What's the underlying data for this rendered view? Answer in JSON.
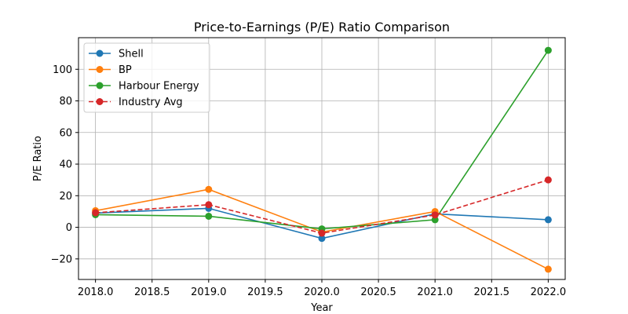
{
  "chart_data": {
    "type": "line",
    "title": "Price-to-Earnings (P/E) Ratio Comparison",
    "xlabel": "Year",
    "ylabel": "P/E Ratio",
    "xlim": [
      2017.85,
      2022.15
    ],
    "ylim": [
      -33,
      120
    ],
    "x_ticks": [
      2018.0,
      2018.5,
      2019.0,
      2019.5,
      2020.0,
      2020.5,
      2021.0,
      2021.5,
      2022.0
    ],
    "x_tick_labels": [
      "2018.0",
      "2018.5",
      "2019.0",
      "2019.5",
      "2020.0",
      "2020.5",
      "2021.0",
      "2021.5",
      "2022.0"
    ],
    "y_ticks": [
      -20,
      0,
      20,
      40,
      60,
      80,
      100
    ],
    "y_tick_labels": [
      "−20",
      "0",
      "20",
      "40",
      "60",
      "80",
      "100"
    ],
    "grid": true,
    "legend_position": "top-left",
    "x": [
      2018,
      2019,
      2020,
      2021,
      2022
    ],
    "series": [
      {
        "name": "Shell",
        "color": "#1f77b4",
        "linestyle": "solid",
        "marker": "circle",
        "values": [
          9,
          12,
          -7,
          8.5,
          4.8
        ]
      },
      {
        "name": "BP",
        "color": "#ff7f0e",
        "linestyle": "solid",
        "marker": "circle",
        "values": [
          10.5,
          24,
          -3,
          10,
          -26.5
        ]
      },
      {
        "name": "Harbour Energy",
        "color": "#2ca02c",
        "linestyle": "solid",
        "marker": "circle",
        "values": [
          8,
          7,
          -1,
          4.8,
          112
        ]
      },
      {
        "name": "Industry Avg",
        "color": "#d62728",
        "linestyle": "dashed",
        "marker": "circle",
        "values": [
          9.2,
          14.3,
          -3.7,
          7.8,
          30
        ]
      }
    ]
  }
}
